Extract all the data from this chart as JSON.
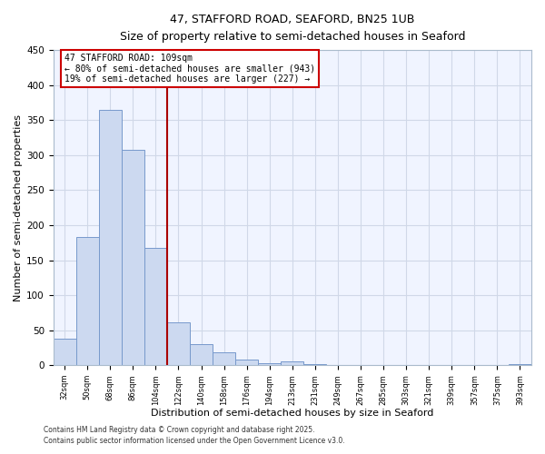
{
  "title": "47, STAFFORD ROAD, SEAFORD, BN25 1UB",
  "subtitle": "Size of property relative to semi-detached houses in Seaford",
  "xlabel": "Distribution of semi-detached houses by size in Seaford",
  "ylabel": "Number of semi-detached properties",
  "bar_labels": [
    "32sqm",
    "50sqm",
    "68sqm",
    "86sqm",
    "104sqm",
    "122sqm",
    "140sqm",
    "158sqm",
    "176sqm",
    "194sqm",
    "213sqm",
    "231sqm",
    "249sqm",
    "267sqm",
    "285sqm",
    "303sqm",
    "321sqm",
    "339sqm",
    "357sqm",
    "375sqm",
    "393sqm"
  ],
  "bar_values": [
    38,
    183,
    365,
    307,
    168,
    61,
    30,
    19,
    8,
    3,
    6,
    2,
    0,
    0,
    0,
    0,
    0,
    0,
    0,
    0,
    2
  ],
  "bar_color": "#ccd9f0",
  "bar_edge_color": "#7799cc",
  "bg_color": "#f0f4ff",
  "grid_color": "#d0d8e8",
  "vline_x": 4.5,
  "vline_color": "#aa0000",
  "annotation_title": "47 STAFFORD ROAD: 109sqm",
  "annotation_line1": "← 80% of semi-detached houses are smaller (943)",
  "annotation_line2": "19% of semi-detached houses are larger (227) →",
  "annotation_box_color": "#cc0000",
  "ylim": [
    0,
    450
  ],
  "yticks": [
    0,
    50,
    100,
    150,
    200,
    250,
    300,
    350,
    400,
    450
  ],
  "footer1": "Contains HM Land Registry data © Crown copyright and database right 2025.",
  "footer2": "Contains public sector information licensed under the Open Government Licence v3.0."
}
